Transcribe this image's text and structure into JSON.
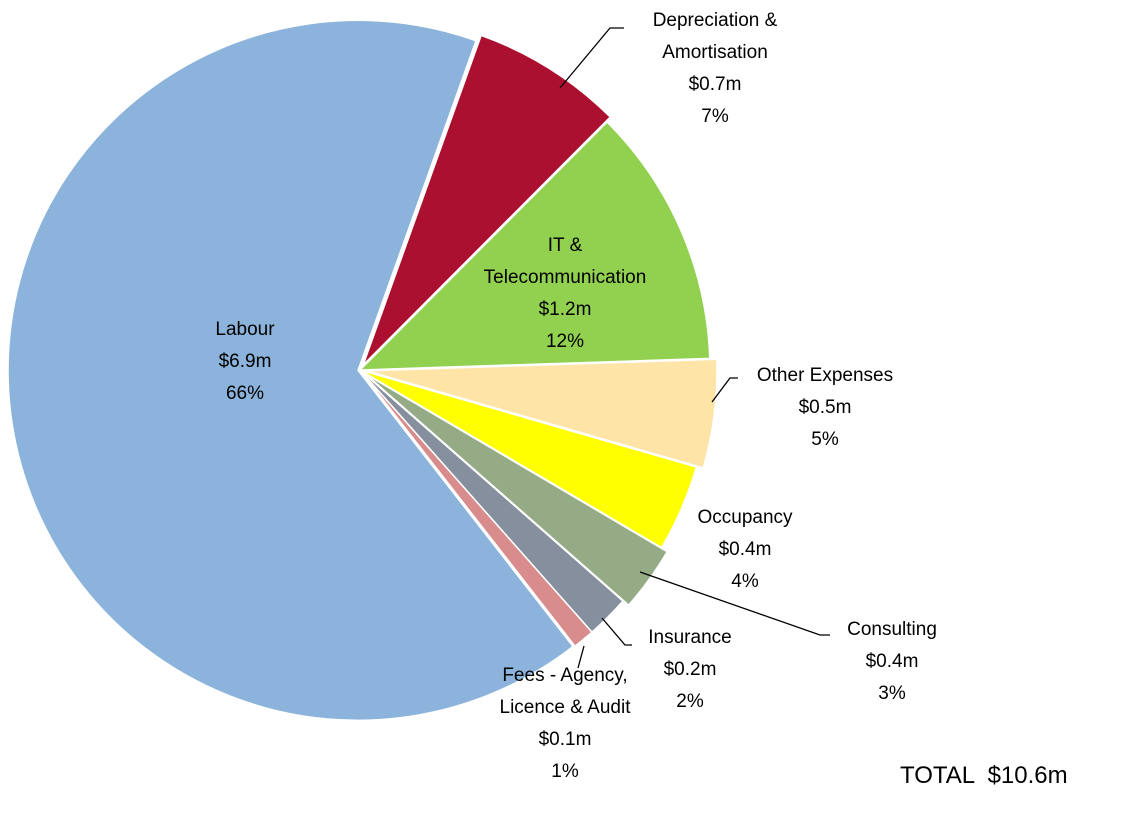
{
  "chart_data": {
    "type": "pie",
    "categories": [
      "Depreciation & Amortisation",
      "IT & Telecommunication",
      "Other Expenses",
      "Occupancy",
      "Consulting",
      "Insurance",
      "Fees - Agency, Licence & Audit",
      "Labour"
    ],
    "values": [
      7,
      12,
      5,
      4,
      3,
      2,
      1,
      66
    ],
    "value_labels": [
      "7%",
      "12%",
      "5%",
      "4%",
      "3%",
      "2%",
      "1%",
      "66%"
    ],
    "amounts": [
      0.7,
      1.2,
      0.5,
      0.4,
      0.4,
      0.2,
      0.1,
      6.9
    ],
    "amount_labels": [
      "$0.7m",
      "$1.2m",
      "$0.5m",
      "$0.4m",
      "$0.4m",
      "$0.2m",
      "$0.1m",
      "$6.9m"
    ],
    "colors": [
      "#ac1030",
      "#92d050",
      "#ffe4a8",
      "#ffff00",
      "#95ab85",
      "#858f9e",
      "#d98c8c",
      "#8cb3db"
    ],
    "total_label": "TOTAL  $10.6m"
  }
}
